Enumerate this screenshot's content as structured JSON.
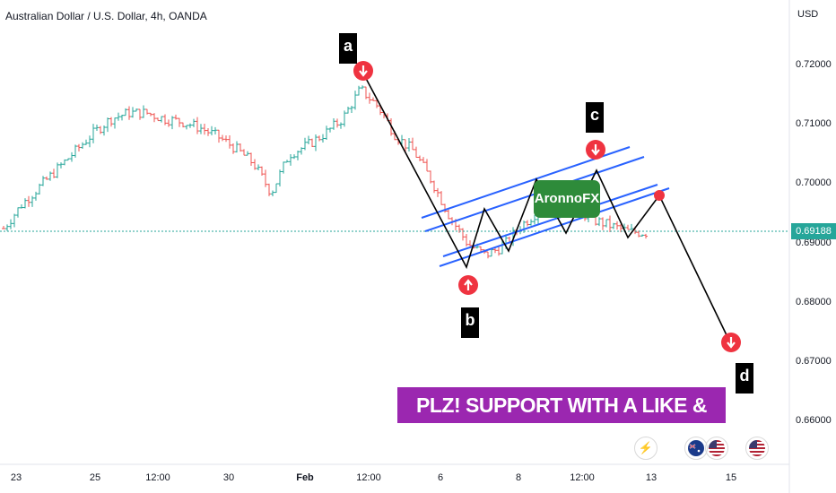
{
  "header": {
    "title": "Australian Dollar / U.S. Dollar, 4h, OANDA",
    "currency": "USD"
  },
  "price_tag": {
    "label": "0.69188",
    "color": "#26a69a"
  },
  "annotations": {
    "labels": [
      "a",
      "b",
      "c",
      "d"
    ],
    "brand": "AronnoFX",
    "banner": "PLZ! SUPPORT WITH A LIKE & SUBSCRIBE"
  },
  "events": [
    {
      "icon": "lightning-icon"
    },
    {
      "icon": "australia-flag-icon"
    },
    {
      "icon": "usa-flag-icon"
    },
    {
      "icon": "usa-flag-icon"
    }
  ],
  "chart_data": {
    "type": "candlestick",
    "title": "Australian Dollar / U.S. Dollar, 4h, OANDA",
    "ylabel": "USD",
    "ylim": [
      0.655,
      0.7275
    ],
    "y_ticks": [
      "0.72000",
      "0.71000",
      "0.70000",
      "0.69000",
      "0.68000",
      "0.67000",
      "0.66000"
    ],
    "x_ticks": [
      "23",
      "25",
      "12:00",
      "30",
      "Feb",
      "12:00",
      "6",
      "8",
      "12:00",
      "13",
      "15"
    ],
    "last_price": 0.69188,
    "series": [
      {
        "name": "AUDUSD",
        "color_up": "#26a69a",
        "color_down": "#ef5350",
        "approx_closes": [
          0.6925,
          0.6965,
          0.6995,
          0.7025,
          0.7055,
          0.7085,
          0.711,
          0.712,
          0.712,
          0.711,
          0.7105,
          0.7095,
          0.708,
          0.706,
          0.7035,
          0.6985,
          0.705,
          0.7065,
          0.7085,
          0.711,
          0.716,
          0.713,
          0.708,
          0.7055,
          0.7005,
          0.6945,
          0.69,
          0.688,
          0.6895,
          0.693,
          0.6955,
          0.697,
          0.696,
          0.694,
          0.693,
          0.692,
          0.6918
        ]
      }
    ],
    "overlays": {
      "wave_path": [
        {
          "label": "a",
          "time": "Feb 12:00",
          "price": 0.7155
        },
        {
          "label": "b",
          "time": "7",
          "price": 0.687
        },
        {
          "label": "c",
          "time": "11",
          "price": 0.702
        },
        {
          "label": "d",
          "time": "15",
          "price": 0.674
        }
      ],
      "channel_color": "#2962ff"
    }
  }
}
